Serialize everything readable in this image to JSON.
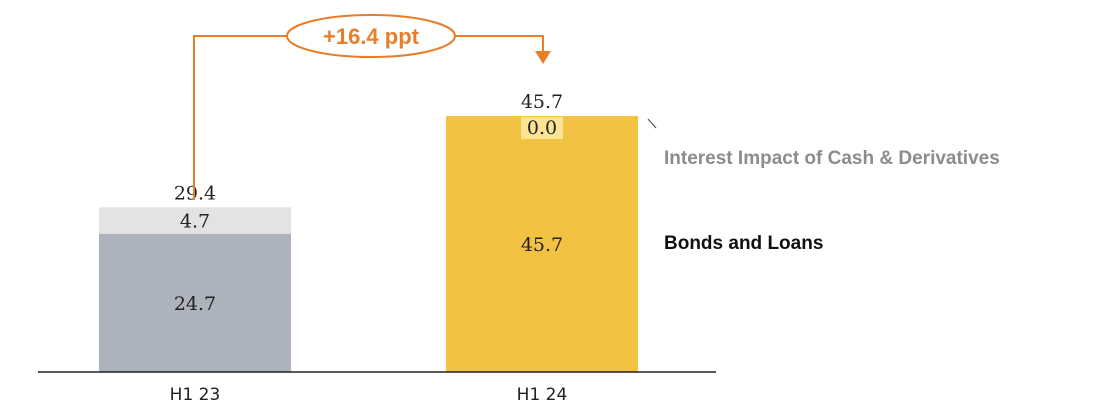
{
  "chart_data": {
    "type": "bar",
    "stacked": true,
    "categories": [
      "H1 23",
      "H1 24"
    ],
    "series": [
      {
        "name": "Bonds and Loans",
        "values": [
          24.7,
          45.7
        ],
        "colors": [
          "#adb3bc",
          "#f2c242"
        ]
      },
      {
        "name": "Interest Impact of Cash & Derivatives",
        "values": [
          4.7,
          0.0
        ],
        "colors": [
          "#e3e3e3",
          "#fbe592"
        ]
      }
    ],
    "totals": [
      29.4,
      45.7
    ],
    "total_labels": [
      "29.4",
      "45.7"
    ],
    "segment_labels": [
      [
        "24.7",
        "4.7"
      ],
      [
        "45.7",
        "0.0"
      ]
    ],
    "annotation": {
      "text": "+16.4 ppt",
      "color": "#ea7d28"
    },
    "legend_colors": {
      "Bonds and Loans": "#111111",
      "Interest Impact of Cash & Derivatives": "#8c8c8c"
    },
    "grid": false
  }
}
